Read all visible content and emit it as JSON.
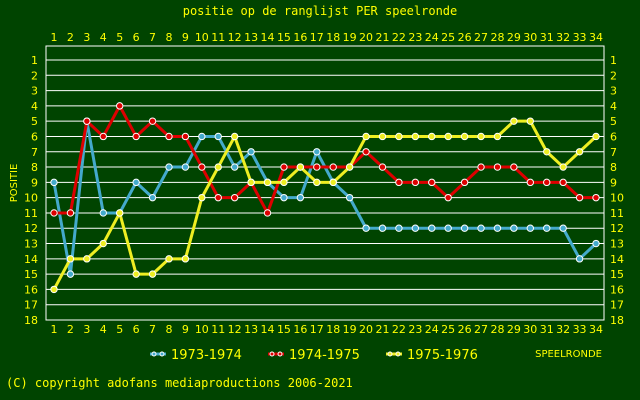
{
  "chart_data": {
    "type": "line",
    "title": "positie op de ranglijst PER speelronde",
    "xlabel": "SPEELRONDE",
    "ylabel": "POSITIE",
    "x": [
      1,
      2,
      3,
      4,
      5,
      6,
      7,
      8,
      9,
      10,
      11,
      12,
      13,
      14,
      15,
      16,
      17,
      18,
      19,
      20,
      21,
      22,
      23,
      24,
      25,
      26,
      27,
      28,
      29,
      30,
      31,
      32,
      33,
      34
    ],
    "xlim": [
      1,
      34
    ],
    "ylim": [
      1,
      18
    ],
    "y_inverted": true,
    "grid": true,
    "legend_position": "bottom",
    "series": [
      {
        "name": "1973-1974",
        "color": "#44aacc",
        "values": [
          9,
          15,
          5,
          11,
          11,
          9,
          10,
          8,
          8,
          6,
          6,
          8,
          7,
          9,
          10,
          10,
          7,
          9,
          10,
          12,
          12,
          12,
          12,
          12,
          12,
          12,
          12,
          12,
          12,
          12,
          12,
          12,
          14,
          13
        ]
      },
      {
        "name": "1974-1975",
        "color": "#dd0000",
        "values": [
          11,
          11,
          5,
          6,
          4,
          6,
          5,
          6,
          6,
          8,
          10,
          10,
          9,
          11,
          8,
          8,
          8,
          8,
          8,
          7,
          8,
          9,
          9,
          9,
          10,
          9,
          8,
          8,
          8,
          9,
          9,
          9,
          10,
          10
        ]
      },
      {
        "name": "1975-1976",
        "color": "#eeee22",
        "values": [
          16,
          14,
          14,
          13,
          11,
          15,
          15,
          14,
          14,
          10,
          8,
          6,
          9,
          9,
          9,
          8,
          9,
          9,
          8,
          6,
          6,
          6,
          6,
          6,
          6,
          6,
          6,
          6,
          5,
          5,
          7,
          8,
          7,
          6
        ]
      }
    ]
  },
  "footer": {
    "copyright": "(C) copyright adofans mediaproductions 2006-2021"
  },
  "colors": {
    "background": "#004400",
    "grid": "#ffffff",
    "text": "#ffff00",
    "marker": "#ffffff"
  }
}
